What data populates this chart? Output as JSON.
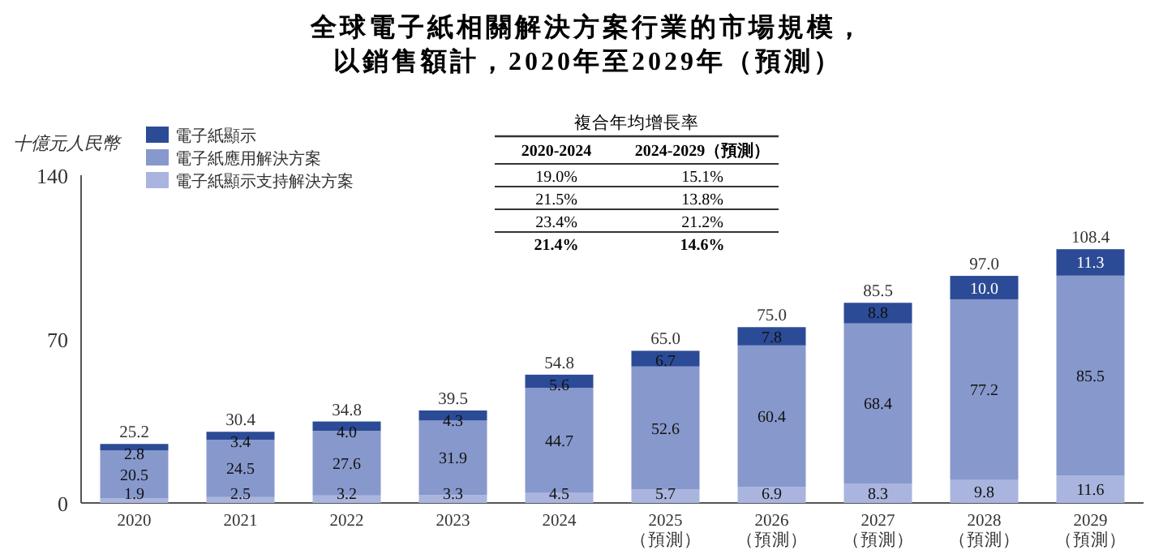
{
  "chart_data": {
    "type": "bar",
    "stacked": true,
    "title": "全球電子紙相關解決方案行業的市場規模，以銷售額計，2020年至2029年（預測）",
    "ylabel": "十億元人民幣",
    "categories": [
      "2020",
      "2021",
      "2022",
      "2023",
      "2024",
      "2025\n（預測）",
      "2026\n（預測）",
      "2027\n（預測）",
      "2028\n（預測）",
      "2029\n（預測）"
    ],
    "series": [
      {
        "name": "電子紙顯示支持解決方案",
        "color": "#a9b5de",
        "values": [
          1.9,
          2.5,
          3.2,
          3.3,
          4.5,
          5.7,
          6.9,
          8.3,
          9.8,
          11.6
        ]
      },
      {
        "name": "電子紙應用解決方案",
        "color": "#8798cc",
        "values": [
          20.5,
          24.5,
          27.6,
          31.9,
          44.7,
          52.6,
          60.4,
          68.4,
          77.2,
          85.5
        ]
      },
      {
        "name": "電子紙顯示",
        "color": "#2c4b96",
        "values": [
          2.8,
          3.4,
          4.0,
          4.3,
          5.6,
          6.7,
          7.8,
          8.8,
          10.0,
          11.3
        ],
        "value_labels": [
          "2.8",
          "3.4",
          "4.0",
          "4.3",
          "5.6",
          "6.7",
          "7.8",
          "8.8",
          "10.0",
          "11.3"
        ]
      }
    ],
    "totals": [
      "25.2",
      "30.4",
      "34.8",
      "39.5",
      "54.8",
      "65.0",
      "75.0",
      "85.5",
      "97.0",
      "108.4"
    ],
    "data_labels": true,
    "ylim": [
      0,
      140
    ],
    "yticks": [
      0,
      70,
      140
    ],
    "legend": "top left",
    "annotations": [
      "複合年均增長率",
      "2020-2024",
      "2024-2029（預測）",
      "19.0%",
      "15.1%",
      "21.5%",
      "13.8%",
      "23.4%",
      "21.2%",
      "21.4%",
      "14.6%"
    ]
  }
}
